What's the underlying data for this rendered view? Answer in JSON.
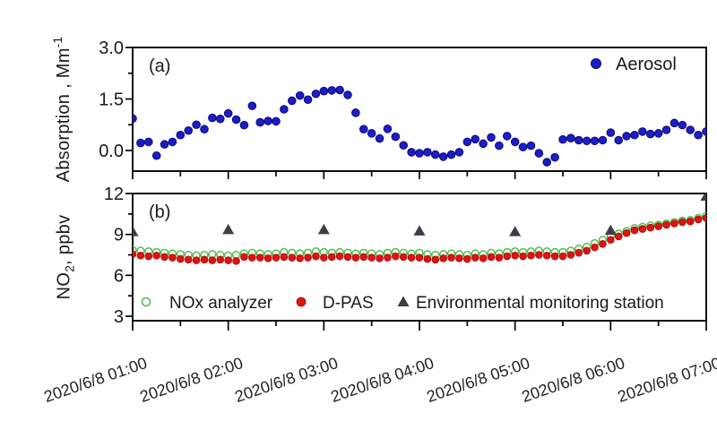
{
  "chart_data": [
    {
      "type": "scatter",
      "panel_label": "(a)",
      "ylabel_parts": {
        "base": "Absorption , Mm",
        "sup": "-1"
      },
      "ytick_values": [
        0.0,
        1.5,
        3.0
      ],
      "ytick_labels": [
        "0.0",
        "1.5",
        "3.0"
      ],
      "ytick_minor_values": [
        0.75,
        2.25
      ],
      "ylim": [
        -0.6,
        3.0
      ],
      "x_range": [
        "2020/6/8 01:00",
        "2020/6/8 07:00"
      ],
      "point_interval_min": 5,
      "grid": false,
      "legend": {
        "position": "top-right-inside"
      },
      "series": [
        {
          "name": "Aerosol",
          "marker": "filled-circle",
          "color": "#1c1cc8",
          "edge_color": "#0d0d70",
          "values": [
            0.93,
            0.22,
            0.25,
            -0.15,
            0.18,
            0.25,
            0.45,
            0.58,
            0.75,
            0.62,
            0.95,
            0.92,
            1.08,
            0.9,
            0.74,
            1.3,
            0.82,
            0.86,
            0.85,
            1.2,
            1.45,
            1.6,
            1.48,
            1.65,
            1.73,
            1.75,
            1.76,
            1.62,
            1.1,
            0.62,
            0.5,
            0.35,
            0.63,
            0.4,
            0.15,
            -0.05,
            -0.08,
            -0.05,
            -0.12,
            -0.18,
            -0.12,
            -0.05,
            0.25,
            0.33,
            0.2,
            0.38,
            0.14,
            0.42,
            0.25,
            0.1,
            0.14,
            -0.08,
            -0.34,
            -0.2,
            0.32,
            0.36,
            0.3,
            0.28,
            0.28,
            0.3,
            0.52,
            0.3,
            0.42,
            0.45,
            0.55,
            0.48,
            0.5,
            0.6,
            0.8,
            0.74,
            0.6,
            0.45,
            0.55
          ]
        }
      ]
    },
    {
      "type": "scatter",
      "panel_label": "(b)",
      "ylabel_parts": {
        "base": "NO",
        "sub": "2",
        "suffix": ", ppbv"
      },
      "ytick_values": [
        3,
        6,
        9,
        12
      ],
      "ytick_labels": [
        "3",
        "6",
        "9",
        "12"
      ],
      "ytick_minor_values": [
        4.5,
        7.5,
        10.5
      ],
      "ylim": [
        2.7,
        12
      ],
      "x_range": [
        "2020/6/8 01:00",
        "2020/6/8 07:00"
      ],
      "point_interval_min": 5,
      "grid": false,
      "legend": {
        "position": "bottom-inside"
      },
      "xtick_labels": [
        "2020/6/8 01:00",
        "2020/6/8 02:00",
        "2020/6/8 03:00",
        "2020/6/8 04:00",
        "2020/6/8 05:00",
        "2020/6/8 06:00",
        "2020/6/8 07:00"
      ],
      "series": [
        {
          "name": "NOx analyzer",
          "marker": "open-circle",
          "color": "#4fbf4f",
          "values": [
            7.85,
            7.8,
            7.75,
            7.7,
            7.65,
            7.6,
            7.55,
            7.5,
            7.45,
            7.5,
            7.55,
            7.5,
            7.45,
            7.5,
            7.6,
            7.65,
            7.6,
            7.55,
            7.6,
            7.7,
            7.65,
            7.6,
            7.65,
            7.75,
            7.7,
            7.65,
            7.7,
            7.65,
            7.6,
            7.65,
            7.6,
            7.55,
            7.65,
            7.7,
            7.65,
            7.6,
            7.65,
            7.55,
            7.5,
            7.55,
            7.6,
            7.55,
            7.5,
            7.6,
            7.55,
            7.65,
            7.6,
            7.7,
            7.75,
            7.7,
            7.75,
            7.8,
            7.75,
            7.7,
            7.7,
            7.8,
            7.95,
            8.1,
            8.35,
            8.6,
            8.85,
            9.05,
            9.25,
            9.45,
            9.55,
            9.65,
            9.7,
            9.8,
            9.9,
            10.0,
            10.05,
            10.2,
            10.35
          ]
        },
        {
          "name": "D-PAS",
          "marker": "filled-circle",
          "color": "#e01212",
          "edge_color": "#a50d0d",
          "values": [
            7.55,
            7.45,
            7.4,
            7.45,
            7.35,
            7.3,
            7.2,
            7.15,
            7.1,
            7.15,
            7.1,
            7.15,
            7.1,
            7.05,
            7.35,
            7.3,
            7.3,
            7.25,
            7.3,
            7.35,
            7.3,
            7.25,
            7.3,
            7.4,
            7.3,
            7.35,
            7.4,
            7.35,
            7.3,
            7.35,
            7.3,
            7.25,
            7.3,
            7.4,
            7.35,
            7.3,
            7.3,
            7.2,
            7.15,
            7.25,
            7.3,
            7.25,
            7.2,
            7.3,
            7.25,
            7.35,
            7.3,
            7.4,
            7.45,
            7.4,
            7.45,
            7.5,
            7.45,
            7.4,
            7.4,
            7.5,
            7.65,
            7.8,
            8.05,
            8.3,
            8.6,
            8.85,
            9.1,
            9.3,
            9.4,
            9.5,
            9.6,
            9.7,
            9.8,
            9.9,
            9.95,
            10.1,
            10.2
          ]
        },
        {
          "name": "Environmental monitoring station",
          "marker": "filled-triangle",
          "color": "#3d3d46",
          "x_hours": [
            1,
            2,
            3,
            4,
            5,
            6,
            7
          ],
          "values": [
            9.2,
            9.35,
            9.35,
            9.25,
            9.2,
            9.3,
            11.8
          ]
        }
      ]
    }
  ]
}
